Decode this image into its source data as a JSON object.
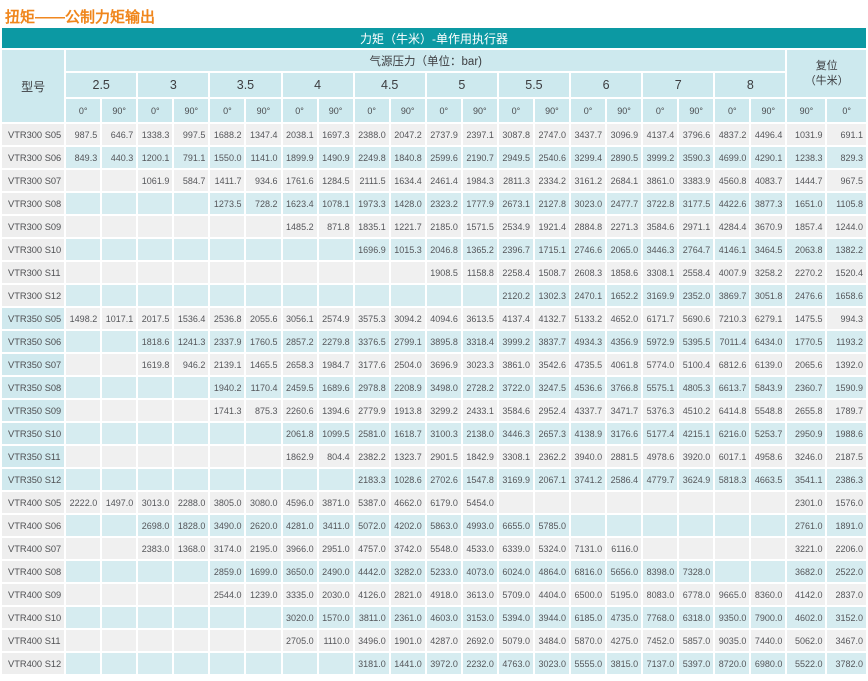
{
  "title": "扭矩——公制力矩输出",
  "colors": {
    "header_teal": "#0c99a3",
    "header_light_cyan": "#cde9ee",
    "stripe_cyan": "#d6ecf0",
    "stripe_gray": "#f0f0f0",
    "model_col_gray": "#eeeeee",
    "model_col_cyan": "#d0e9ee",
    "title_orange": "#f0861c",
    "cell_text": "#55565a"
  },
  "table": {
    "main_header": "力矩（牛米）-单作用执行器",
    "model_header": "型号",
    "pressure_header": "气源压力（单位：bar)",
    "reset_header_line1": "复位",
    "reset_header_line2": "（牛米）",
    "pressures": [
      "2.5",
      "3",
      "3.5",
      "4",
      "4.5",
      "5",
      "5.5",
      "6",
      "7",
      "8"
    ],
    "deg0": "0°",
    "deg90": "90°",
    "reset_degs": [
      "90°",
      "0°"
    ],
    "rows": [
      {
        "model": "VTR300 S05",
        "values": [
          "987.5",
          "646.7",
          "1338.3",
          "997.5",
          "1688.2",
          "1347.4",
          "2038.1",
          "1697.3",
          "2388.0",
          "2047.2",
          "2737.9",
          "2397.1",
          "3087.8",
          "2747.0",
          "3437.7",
          "3096.9",
          "4137.4",
          "3796.6",
          "4837.2",
          "4496.4",
          "1031.9",
          "691.1"
        ]
      },
      {
        "model": "VTR300 S06",
        "values": [
          "849.3",
          "440.3",
          "1200.1",
          "791.1",
          "1550.0",
          "1141.0",
          "1899.9",
          "1490.9",
          "2249.8",
          "1840.8",
          "2599.6",
          "2190.7",
          "2949.5",
          "2540.6",
          "3299.4",
          "2890.5",
          "3999.2",
          "3590.3",
          "4699.0",
          "4290.1",
          "1238.3",
          "829.3"
        ]
      },
      {
        "model": "VTR300 S07",
        "values": [
          null,
          null,
          "1061.9",
          "584.7",
          "1411.7",
          "934.6",
          "1761.6",
          "1284.5",
          "2111.5",
          "1634.4",
          "2461.4",
          "1984.3",
          "2811.3",
          "2334.2",
          "3161.2",
          "2684.1",
          "3861.0",
          "3383.9",
          "4560.8",
          "4083.7",
          "1444.7",
          "967.5"
        ]
      },
      {
        "model": "VTR300 S08",
        "values": [
          null,
          null,
          null,
          null,
          "1273.5",
          "728.2",
          "1623.4",
          "1078.1",
          "1973.3",
          "1428.0",
          "2323.2",
          "1777.9",
          "2673.1",
          "2127.8",
          "3023.0",
          "2477.7",
          "3722.8",
          "3177.5",
          "4422.6",
          "3877.3",
          "1651.0",
          "1105.8"
        ]
      },
      {
        "model": "VTR300 S09",
        "values": [
          null,
          null,
          null,
          null,
          null,
          null,
          "1485.2",
          "871.8",
          "1835.1",
          "1221.7",
          "2185.0",
          "1571.5",
          "2534.9",
          "1921.4",
          "2884.8",
          "2271.3",
          "3584.6",
          "2971.1",
          "4284.4",
          "3670.9",
          "1857.4",
          "1244.0"
        ]
      },
      {
        "model": "VTR300 S10",
        "values": [
          null,
          null,
          null,
          null,
          null,
          null,
          null,
          null,
          "1696.9",
          "1015.3",
          "2046.8",
          "1365.2",
          "2396.7",
          "1715.1",
          "2746.6",
          "2065.0",
          "3446.3",
          "2764.7",
          "4146.1",
          "3464.5",
          "2063.8",
          "1382.2"
        ]
      },
      {
        "model": "VTR300 S11",
        "values": [
          null,
          null,
          null,
          null,
          null,
          null,
          null,
          null,
          null,
          null,
          "1908.5",
          "1158.8",
          "2258.4",
          "1508.7",
          "2608.3",
          "1858.6",
          "3308.1",
          "2558.4",
          "4007.9",
          "3258.2",
          "2270.2",
          "1520.4"
        ]
      },
      {
        "model": "VTR300 S12",
        "values": [
          null,
          null,
          null,
          null,
          null,
          null,
          null,
          null,
          null,
          null,
          null,
          null,
          "2120.2",
          "1302.3",
          "2470.1",
          "1652.2",
          "3169.9",
          "2352.0",
          "3869.7",
          "3051.8",
          "2476.6",
          "1658.6"
        ]
      },
      {
        "model": "VTR350 S05",
        "values": [
          "1498.2",
          "1017.1",
          "2017.5",
          "1536.4",
          "2536.8",
          "2055.6",
          "3056.1",
          "2574.9",
          "3575.3",
          "3094.2",
          "4094.6",
          "3613.5",
          "4137.4",
          "4132.7",
          "5133.2",
          "4652.0",
          "6171.7",
          "5690.6",
          "7210.3",
          "6279.1",
          "1475.5",
          "994.3"
        ]
      },
      {
        "model": "VTR350 S06",
        "values": [
          null,
          null,
          "1818.6",
          "1241.3",
          "2337.9",
          "1760.5",
          "2857.2",
          "2279.8",
          "3376.5",
          "2799.1",
          "3895.8",
          "3318.4",
          "3999.2",
          "3837.7",
          "4934.3",
          "4356.9",
          "5972.9",
          "5395.5",
          "7011.4",
          "6434.0",
          "1770.5",
          "1193.2"
        ]
      },
      {
        "model": "VTR350 S07",
        "values": [
          null,
          null,
          "1619.8",
          "946.2",
          "2139.1",
          "1465.5",
          "2658.3",
          "1984.7",
          "3177.6",
          "2504.0",
          "3696.9",
          "3023.3",
          "3861.0",
          "3542.6",
          "4735.5",
          "4061.8",
          "5774.0",
          "5100.4",
          "6812.6",
          "6139.0",
          "2065.6",
          "1392.0"
        ]
      },
      {
        "model": "VTR350 S08",
        "values": [
          null,
          null,
          null,
          null,
          "1940.2",
          "1170.4",
          "2459.5",
          "1689.6",
          "2978.8",
          "2208.9",
          "3498.0",
          "2728.2",
          "3722.0",
          "3247.5",
          "4536.6",
          "3766.8",
          "5575.1",
          "4805.3",
          "6613.7",
          "5843.9",
          "2360.7",
          "1590.9"
        ]
      },
      {
        "model": "VTR350 S09",
        "values": [
          null,
          null,
          null,
          null,
          "1741.3",
          "875.3",
          "2260.6",
          "1394.6",
          "2779.9",
          "1913.8",
          "3299.2",
          "2433.1",
          "3584.6",
          "2952.4",
          "4337.7",
          "3471.7",
          "5376.3",
          "4510.2",
          "6414.8",
          "5548.8",
          "2655.8",
          "1789.7"
        ]
      },
      {
        "model": "VTR350 S10",
        "values": [
          null,
          null,
          null,
          null,
          null,
          null,
          "2061.8",
          "1099.5",
          "2581.0",
          "1618.7",
          "3100.3",
          "2138.0",
          "3446.3",
          "2657.3",
          "4138.9",
          "3176.6",
          "5177.4",
          "4215.1",
          "6216.0",
          "5253.7",
          "2950.9",
          "1988.6"
        ]
      },
      {
        "model": "VTR350 S11",
        "values": [
          null,
          null,
          null,
          null,
          null,
          null,
          "1862.9",
          "804.4",
          "2382.2",
          "1323.7",
          "2901.5",
          "1842.9",
          "3308.1",
          "2362.2",
          "3940.0",
          "2881.5",
          "4978.6",
          "3920.0",
          "6017.1",
          "4958.6",
          "3246.0",
          "2187.5"
        ]
      },
      {
        "model": "VTR350 S12",
        "values": [
          null,
          null,
          null,
          null,
          null,
          null,
          null,
          null,
          "2183.3",
          "1028.6",
          "2702.6",
          "1547.8",
          "3169.9",
          "2067.1",
          "3741.2",
          "2586.4",
          "4779.7",
          "3624.9",
          "5818.3",
          "4663.5",
          "3541.1",
          "2386.3"
        ]
      },
      {
        "model": "VTR400 S05",
        "values": [
          "2222.0",
          "1497.0",
          "3013.0",
          "2288.0",
          "3805.0",
          "3080.0",
          "4596.0",
          "3871.0",
          "5387.0",
          "4662.0",
          "6179.0",
          "5454.0",
          null,
          null,
          null,
          null,
          null,
          null,
          null,
          null,
          "2301.0",
          "1576.0"
        ]
      },
      {
        "model": "VTR400 S06",
        "values": [
          null,
          null,
          "2698.0",
          "1828.0",
          "3490.0",
          "2620.0",
          "4281.0",
          "3411.0",
          "5072.0",
          "4202.0",
          "5863.0",
          "4993.0",
          "6655.0",
          "5785.0",
          null,
          null,
          null,
          null,
          null,
          null,
          "2761.0",
          "1891.0"
        ]
      },
      {
        "model": "VTR400 S07",
        "values": [
          null,
          null,
          "2383.0",
          "1368.0",
          "3174.0",
          "2195.0",
          "3966.0",
          "2951.0",
          "4757.0",
          "3742.0",
          "5548.0",
          "4533.0",
          "6339.0",
          "5324.0",
          "7131.0",
          "6116.0",
          null,
          null,
          null,
          null,
          "3221.0",
          "2206.0"
        ]
      },
      {
        "model": "VTR400 S08",
        "values": [
          null,
          null,
          null,
          null,
          "2859.0",
          "1699.0",
          "3650.0",
          "2490.0",
          "4442.0",
          "3282.0",
          "5233.0",
          "4073.0",
          "6024.0",
          "4864.0",
          "6816.0",
          "5656.0",
          "8398.0",
          "7328.0",
          null,
          null,
          "3682.0",
          "2522.0"
        ]
      },
      {
        "model": "VTR400 S09",
        "values": [
          null,
          null,
          null,
          null,
          "2544.0",
          "1239.0",
          "3335.0",
          "2030.0",
          "4126.0",
          "2821.0",
          "4918.0",
          "3613.0",
          "5709.0",
          "4404.0",
          "6500.0",
          "5195.0",
          "8083.0",
          "6778.0",
          "9665.0",
          "8360.0",
          "4142.0",
          "2837.0"
        ]
      },
      {
        "model": "VTR400 S10",
        "values": [
          null,
          null,
          null,
          null,
          null,
          null,
          "3020.0",
          "1570.0",
          "3811.0",
          "2361.0",
          "4603.0",
          "3153.0",
          "5394.0",
          "3944.0",
          "6185.0",
          "4735.0",
          "7768.0",
          "6318.0",
          "9350.0",
          "7900.0",
          "4602.0",
          "3152.0"
        ]
      },
      {
        "model": "VTR400 S11",
        "values": [
          null,
          null,
          null,
          null,
          null,
          null,
          "2705.0",
          "1110.0",
          "3496.0",
          "1901.0",
          "4287.0",
          "2692.0",
          "5079.0",
          "3484.0",
          "5870.0",
          "4275.0",
          "7452.0",
          "5857.0",
          "9035.0",
          "7440.0",
          "5062.0",
          "3467.0"
        ]
      },
      {
        "model": "VTR400 S12",
        "values": [
          null,
          null,
          null,
          null,
          null,
          null,
          null,
          null,
          "3181.0",
          "1441.0",
          "3972.0",
          "2232.0",
          "4763.0",
          "3023.0",
          "5555.0",
          "3815.0",
          "7137.0",
          "5397.0",
          "8720.0",
          "6980.0",
          "5522.0",
          "3782.0"
        ]
      }
    ]
  }
}
